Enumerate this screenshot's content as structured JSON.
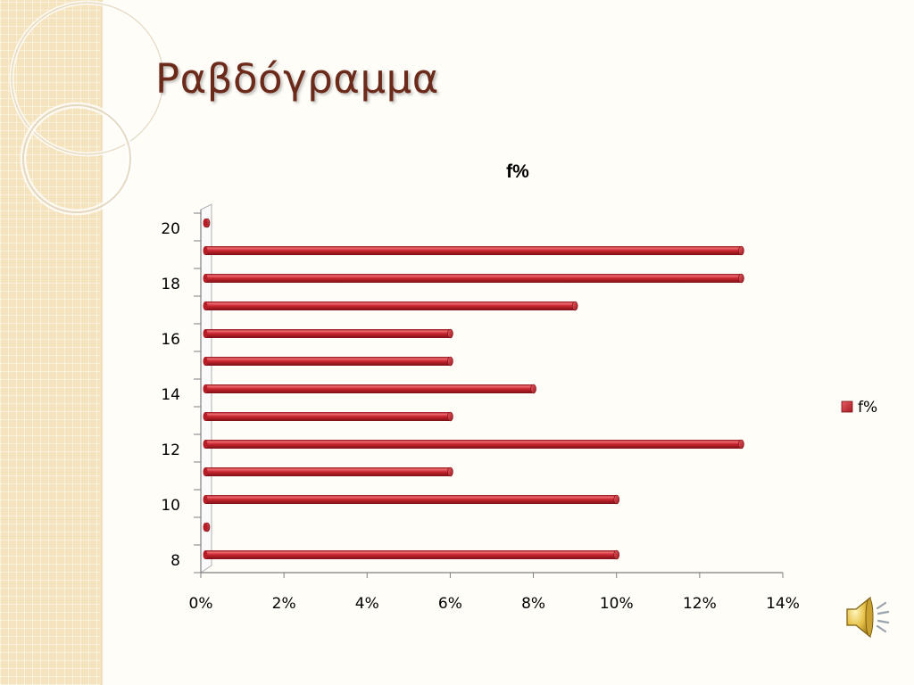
{
  "slide": {
    "title": "Ραβδόγραμμα"
  },
  "icons": {
    "audio": "speaker-icon"
  },
  "colors": {
    "title": "#6b2a1a",
    "bar_fill": "#c0212b",
    "bar_highlight": "#ee6b70",
    "bar_shadow": "#7a1016",
    "side_band": "#f4e3bd"
  },
  "chart_data": {
    "type": "bar",
    "orientation": "horizontal",
    "title": "f%",
    "xlabel": "",
    "ylabel": "",
    "categories": [
      "8",
      "9",
      "10",
      "11",
      "12",
      "13",
      "14",
      "15",
      "16",
      "17",
      "18",
      "19",
      "20"
    ],
    "y_tick_labels": [
      "8",
      "10",
      "12",
      "14",
      "16",
      "18",
      "20"
    ],
    "series": [
      {
        "name": "f%",
        "values": [
          10,
          0,
          10,
          6,
          13,
          6,
          8,
          6,
          6,
          9,
          13,
          13,
          0
        ]
      }
    ],
    "xlim": [
      0,
      14
    ],
    "x_ticks": [
      0,
      2,
      4,
      6,
      8,
      10,
      12,
      14
    ],
    "x_tick_labels": [
      "0%",
      "2%",
      "4%",
      "6%",
      "8%",
      "10%",
      "12%",
      "14%"
    ],
    "grid": false,
    "legend_position": "right",
    "style": "3d-cylinder"
  }
}
